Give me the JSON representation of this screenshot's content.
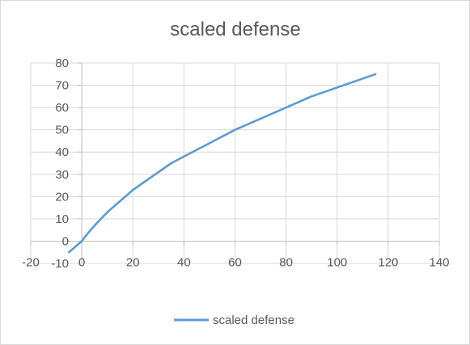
{
  "chart_data": {
    "type": "line",
    "title": "scaled defense",
    "xlabel": "",
    "ylabel": "",
    "xlim": [
      -20,
      140
    ],
    "ylim": [
      -10,
      80
    ],
    "xticks": [
      -20,
      0,
      20,
      40,
      60,
      80,
      100,
      120,
      140
    ],
    "yticks": [
      -10,
      0,
      10,
      20,
      30,
      40,
      50,
      60,
      70,
      80
    ],
    "grid": true,
    "legend_position": "bottom",
    "series": [
      {
        "name": "scaled defense",
        "color": "#5b9bd5",
        "x": [
          -5,
          0,
          2,
          5,
          10,
          20,
          35,
          60,
          90,
          115
        ],
        "y": [
          -5,
          0,
          3,
          7,
          13,
          23,
          35,
          50,
          65,
          75
        ]
      }
    ]
  }
}
